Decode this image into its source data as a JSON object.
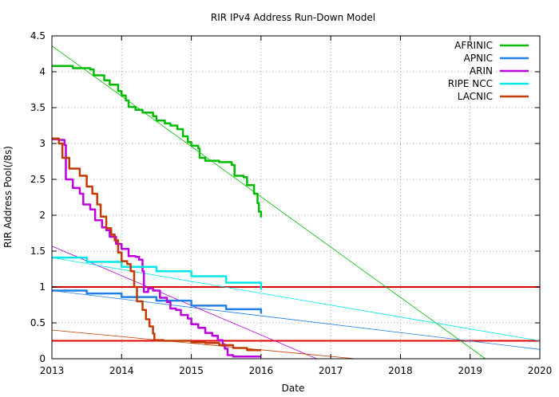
{
  "chart_data": {
    "type": "line",
    "title": "RIR IPv4 Address Run-Down Model",
    "xlabel": "Date",
    "ylabel": "RIR Address Pool(/8s)",
    "xlim": [
      2013,
      2020
    ],
    "ylim": [
      0,
      4.5
    ],
    "x_ticks": [
      2013,
      2014,
      2015,
      2016,
      2017,
      2018,
      2019,
      2020
    ],
    "y_ticks": [
      "0",
      "0.5",
      "1",
      "1.5",
      "2",
      "2.5",
      "3",
      "3.5",
      "4",
      "4.5"
    ],
    "grid": true,
    "legend_position": "top-right",
    "thresholds": [
      {
        "y": 1.0,
        "color": "#dd0000"
      },
      {
        "y": 0.25,
        "color": "#dd0000"
      }
    ],
    "series": [
      {
        "name": "AFRINIC",
        "color": "#00bb00",
        "values": [
          [
            2013.0,
            4.08
          ],
          [
            2013.3,
            4.05
          ],
          [
            2013.55,
            4.03
          ],
          [
            2013.6,
            3.95
          ],
          [
            2013.75,
            3.88
          ],
          [
            2013.83,
            3.82
          ],
          [
            2013.95,
            3.73
          ],
          [
            2014.0,
            3.67
          ],
          [
            2014.06,
            3.6
          ],
          [
            2014.1,
            3.51
          ],
          [
            2014.2,
            3.47
          ],
          [
            2014.3,
            3.43
          ],
          [
            2014.45,
            3.38
          ],
          [
            2014.5,
            3.32
          ],
          [
            2014.62,
            3.28
          ],
          [
            2014.7,
            3.25
          ],
          [
            2014.8,
            3.2
          ],
          [
            2014.88,
            3.1
          ],
          [
            2014.95,
            3.02
          ],
          [
            2015.0,
            2.97
          ],
          [
            2015.1,
            2.93
          ],
          [
            2015.12,
            2.8
          ],
          [
            2015.2,
            2.76
          ],
          [
            2015.4,
            2.74
          ],
          [
            2015.58,
            2.7
          ],
          [
            2015.62,
            2.55
          ],
          [
            2015.75,
            2.53
          ],
          [
            2015.8,
            2.42
          ],
          [
            2015.9,
            2.3
          ],
          [
            2015.95,
            2.17
          ],
          [
            2015.97,
            2.05
          ],
          [
            2016.0,
            1.97
          ]
        ],
        "trend": [
          [
            2013.0,
            4.36
          ],
          [
            2019.22,
            0.0
          ]
        ]
      },
      {
        "name": "APNIC",
        "color": "#1e7fe8",
        "values": [
          [
            2013.0,
            0.95
          ],
          [
            2013.5,
            0.91
          ],
          [
            2014.0,
            0.86
          ],
          [
            2014.5,
            0.81
          ],
          [
            2015.0,
            0.74
          ],
          [
            2015.5,
            0.69
          ],
          [
            2016.0,
            0.63
          ]
        ],
        "trend": [
          [
            2013.0,
            0.95
          ],
          [
            2020.0,
            0.13
          ]
        ]
      },
      {
        "name": "ARIN",
        "color": "#bb00dd",
        "values": [
          [
            2013.0,
            3.06
          ],
          [
            2013.1,
            3.05
          ],
          [
            2013.18,
            2.98
          ],
          [
            2013.2,
            2.5
          ],
          [
            2013.3,
            2.38
          ],
          [
            2013.4,
            2.3
          ],
          [
            2013.45,
            2.15
          ],
          [
            2013.55,
            2.08
          ],
          [
            2013.62,
            1.93
          ],
          [
            2013.72,
            1.83
          ],
          [
            2013.78,
            1.79
          ],
          [
            2013.83,
            1.7
          ],
          [
            2013.92,
            1.6
          ],
          [
            2014.0,
            1.53
          ],
          [
            2014.1,
            1.43
          ],
          [
            2014.2,
            1.42
          ],
          [
            2014.25,
            1.38
          ],
          [
            2014.3,
            1.22
          ],
          [
            2014.32,
            0.93
          ],
          [
            2014.38,
            0.98
          ],
          [
            2014.45,
            0.95
          ],
          [
            2014.55,
            0.85
          ],
          [
            2014.65,
            0.79
          ],
          [
            2014.7,
            0.7
          ],
          [
            2014.78,
            0.68
          ],
          [
            2014.85,
            0.61
          ],
          [
            2014.95,
            0.56
          ],
          [
            2015.0,
            0.48
          ],
          [
            2015.1,
            0.43
          ],
          [
            2015.2,
            0.36
          ],
          [
            2015.3,
            0.32
          ],
          [
            2015.38,
            0.26
          ],
          [
            2015.45,
            0.2
          ],
          [
            2015.48,
            0.14
          ],
          [
            2015.52,
            0.05
          ],
          [
            2015.6,
            0.03
          ],
          [
            2016.0,
            0.03
          ]
        ],
        "trend": [
          [
            2013.0,
            1.57
          ],
          [
            2016.8,
            0.0
          ]
        ]
      },
      {
        "name": "RIPE NCC",
        "color": "#00e8e8",
        "values": [
          [
            2013.0,
            1.41
          ],
          [
            2013.5,
            1.35
          ],
          [
            2014.0,
            1.28
          ],
          [
            2014.5,
            1.22
          ],
          [
            2015.0,
            1.15
          ],
          [
            2015.5,
            1.06
          ],
          [
            2016.0,
            0.96
          ]
        ],
        "trend": [
          [
            2013.0,
            1.41
          ],
          [
            2020.0,
            0.25
          ]
        ]
      },
      {
        "name": "LACNIC",
        "color": "#c23a00",
        "values": [
          [
            2013.0,
            3.07
          ],
          [
            2013.1,
            3.0
          ],
          [
            2013.15,
            2.8
          ],
          [
            2013.25,
            2.65
          ],
          [
            2013.4,
            2.55
          ],
          [
            2013.5,
            2.4
          ],
          [
            2013.58,
            2.3
          ],
          [
            2013.65,
            2.15
          ],
          [
            2013.7,
            1.98
          ],
          [
            2013.78,
            1.82
          ],
          [
            2013.85,
            1.73
          ],
          [
            2013.9,
            1.65
          ],
          [
            2013.95,
            1.48
          ],
          [
            2014.0,
            1.36
          ],
          [
            2014.08,
            1.32
          ],
          [
            2014.13,
            1.22
          ],
          [
            2014.18,
            1.0
          ],
          [
            2014.22,
            0.8
          ],
          [
            2014.3,
            0.68
          ],
          [
            2014.35,
            0.55
          ],
          [
            2014.4,
            0.45
          ],
          [
            2014.45,
            0.35
          ],
          [
            2014.47,
            0.26
          ],
          [
            2014.6,
            0.25
          ],
          [
            2014.8,
            0.25
          ],
          [
            2015.0,
            0.23
          ],
          [
            2015.2,
            0.22
          ],
          [
            2015.4,
            0.19
          ],
          [
            2015.6,
            0.15
          ],
          [
            2015.8,
            0.12
          ],
          [
            2016.0,
            0.12
          ]
        ],
        "trend": [
          [
            2013.0,
            0.4
          ],
          [
            2017.35,
            0.0
          ]
        ]
      }
    ]
  }
}
